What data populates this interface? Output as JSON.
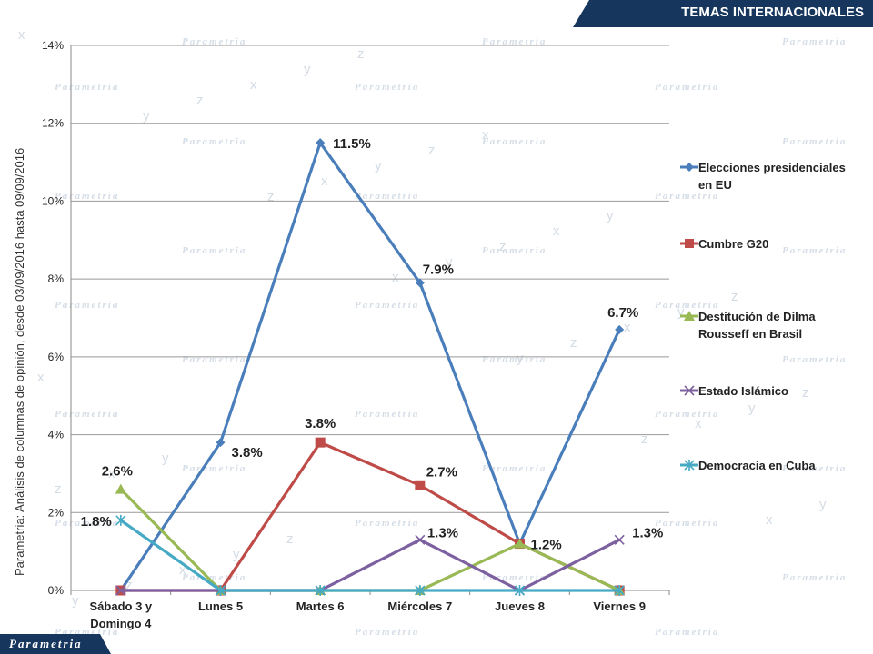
{
  "header": {
    "title": "TEMAS INTERNACIONALES"
  },
  "footer": {
    "logo": "Parametria"
  },
  "side_note": "Parametria: Análisis de columnas de opinión, desde 03/09/2016 hasta  09/09/2016",
  "watermark": {
    "word": "Parametria",
    "glyphs": [
      "x",
      "y",
      "z"
    ]
  },
  "colors": {
    "banner": "#17365d",
    "grid": "#999999"
  },
  "chart_data": {
    "type": "line",
    "categories": [
      "Sábado 3 y Domingo 4",
      "Lunes 5",
      "Martes 6",
      "Miércoles 7",
      "Jueves 8",
      "Viernes 9"
    ],
    "category_lines": [
      [
        "Sábado 3 y",
        "Domingo 4"
      ],
      [
        "Lunes 5"
      ],
      [
        "Martes 6"
      ],
      [
        "Miércoles 7"
      ],
      [
        "Jueves 8"
      ],
      [
        "Viernes 9"
      ]
    ],
    "y_ticks": [
      "0%",
      "2%",
      "4%",
      "6%",
      "8%",
      "10%",
      "12%",
      "14%"
    ],
    "ylim": [
      0,
      14
    ],
    "grid": true,
    "legend_position": "right",
    "series": [
      {
        "name": "Elecciones presidenciales en EU",
        "legend_lines": [
          "Elecciones presidenciales",
          "en EU"
        ],
        "color": "#4a7ebb",
        "marker": "diamond",
        "values": [
          0,
          3.8,
          11.5,
          7.9,
          1.2,
          6.7
        ],
        "labels": [
          "",
          "3.8%",
          "11.5%",
          "7.9%",
          "",
          "6.7%"
        ]
      },
      {
        "name": "Cumbre G20",
        "legend_lines": [
          "Cumbre G20"
        ],
        "color": "#be4b48",
        "marker": "square",
        "values": [
          0,
          0,
          3.8,
          2.7,
          1.2,
          0
        ],
        "labels": [
          "",
          "",
          "3.8%",
          "2.7%",
          "1.2%",
          ""
        ]
      },
      {
        "name": "Destitución de Dilma Rousseff en Brasil",
        "legend_lines": [
          "Destitución de Dilma",
          "Rousseff en Brasil"
        ],
        "color": "#98b954",
        "marker": "triangle",
        "values": [
          2.6,
          0,
          0,
          0,
          1.2,
          0
        ],
        "labels": [
          "2.6%",
          "",
          "",
          "",
          "",
          ""
        ]
      },
      {
        "name": "Estado Islámico",
        "legend_lines": [
          "Estado Islámico"
        ],
        "color": "#7d60a0",
        "marker": "x",
        "values": [
          0,
          0,
          0,
          1.3,
          0,
          1.3
        ],
        "labels": [
          "",
          "",
          "",
          "1.3%",
          "",
          "1.3%"
        ]
      },
      {
        "name": "Democracia en Cuba",
        "legend_lines": [
          "Democracia en Cuba"
        ],
        "color": "#46aac5",
        "marker": "star",
        "values": [
          1.8,
          0,
          0,
          0,
          0,
          0
        ],
        "labels": [
          "1.8%",
          "",
          "",
          "",
          "",
          ""
        ]
      }
    ]
  }
}
